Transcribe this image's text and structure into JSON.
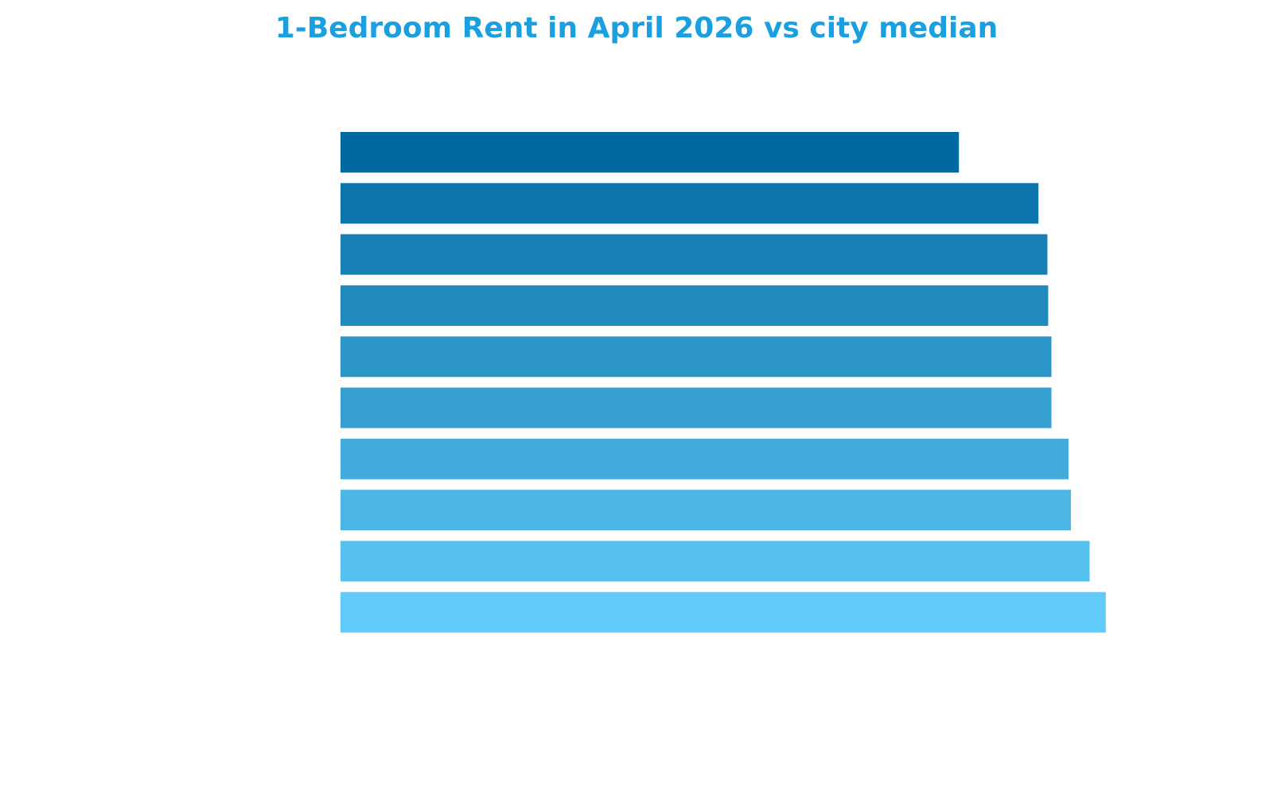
{
  "chart_data": {
    "type": "barh",
    "title": "1-Bedroom Rent in April 2026 vs city median",
    "categories": [
      null,
      null,
      null,
      null,
      null,
      null,
      null,
      null,
      null,
      null
    ],
    "values": [
      76.2,
      86,
      87.1,
      87.2,
      87.6,
      87.6,
      89.7,
      90,
      92.3,
      94.3
    ],
    "colors": [
      "#0069a0",
      "#0b74aa",
      "#177fb4",
      "#228abd",
      "#2c95c7",
      "#37a0d1",
      "#42abdb",
      "#4cb6e4",
      "#56c0ee",
      "#60cbf8"
    ],
    "xlim": [
      0,
      100
    ]
  }
}
